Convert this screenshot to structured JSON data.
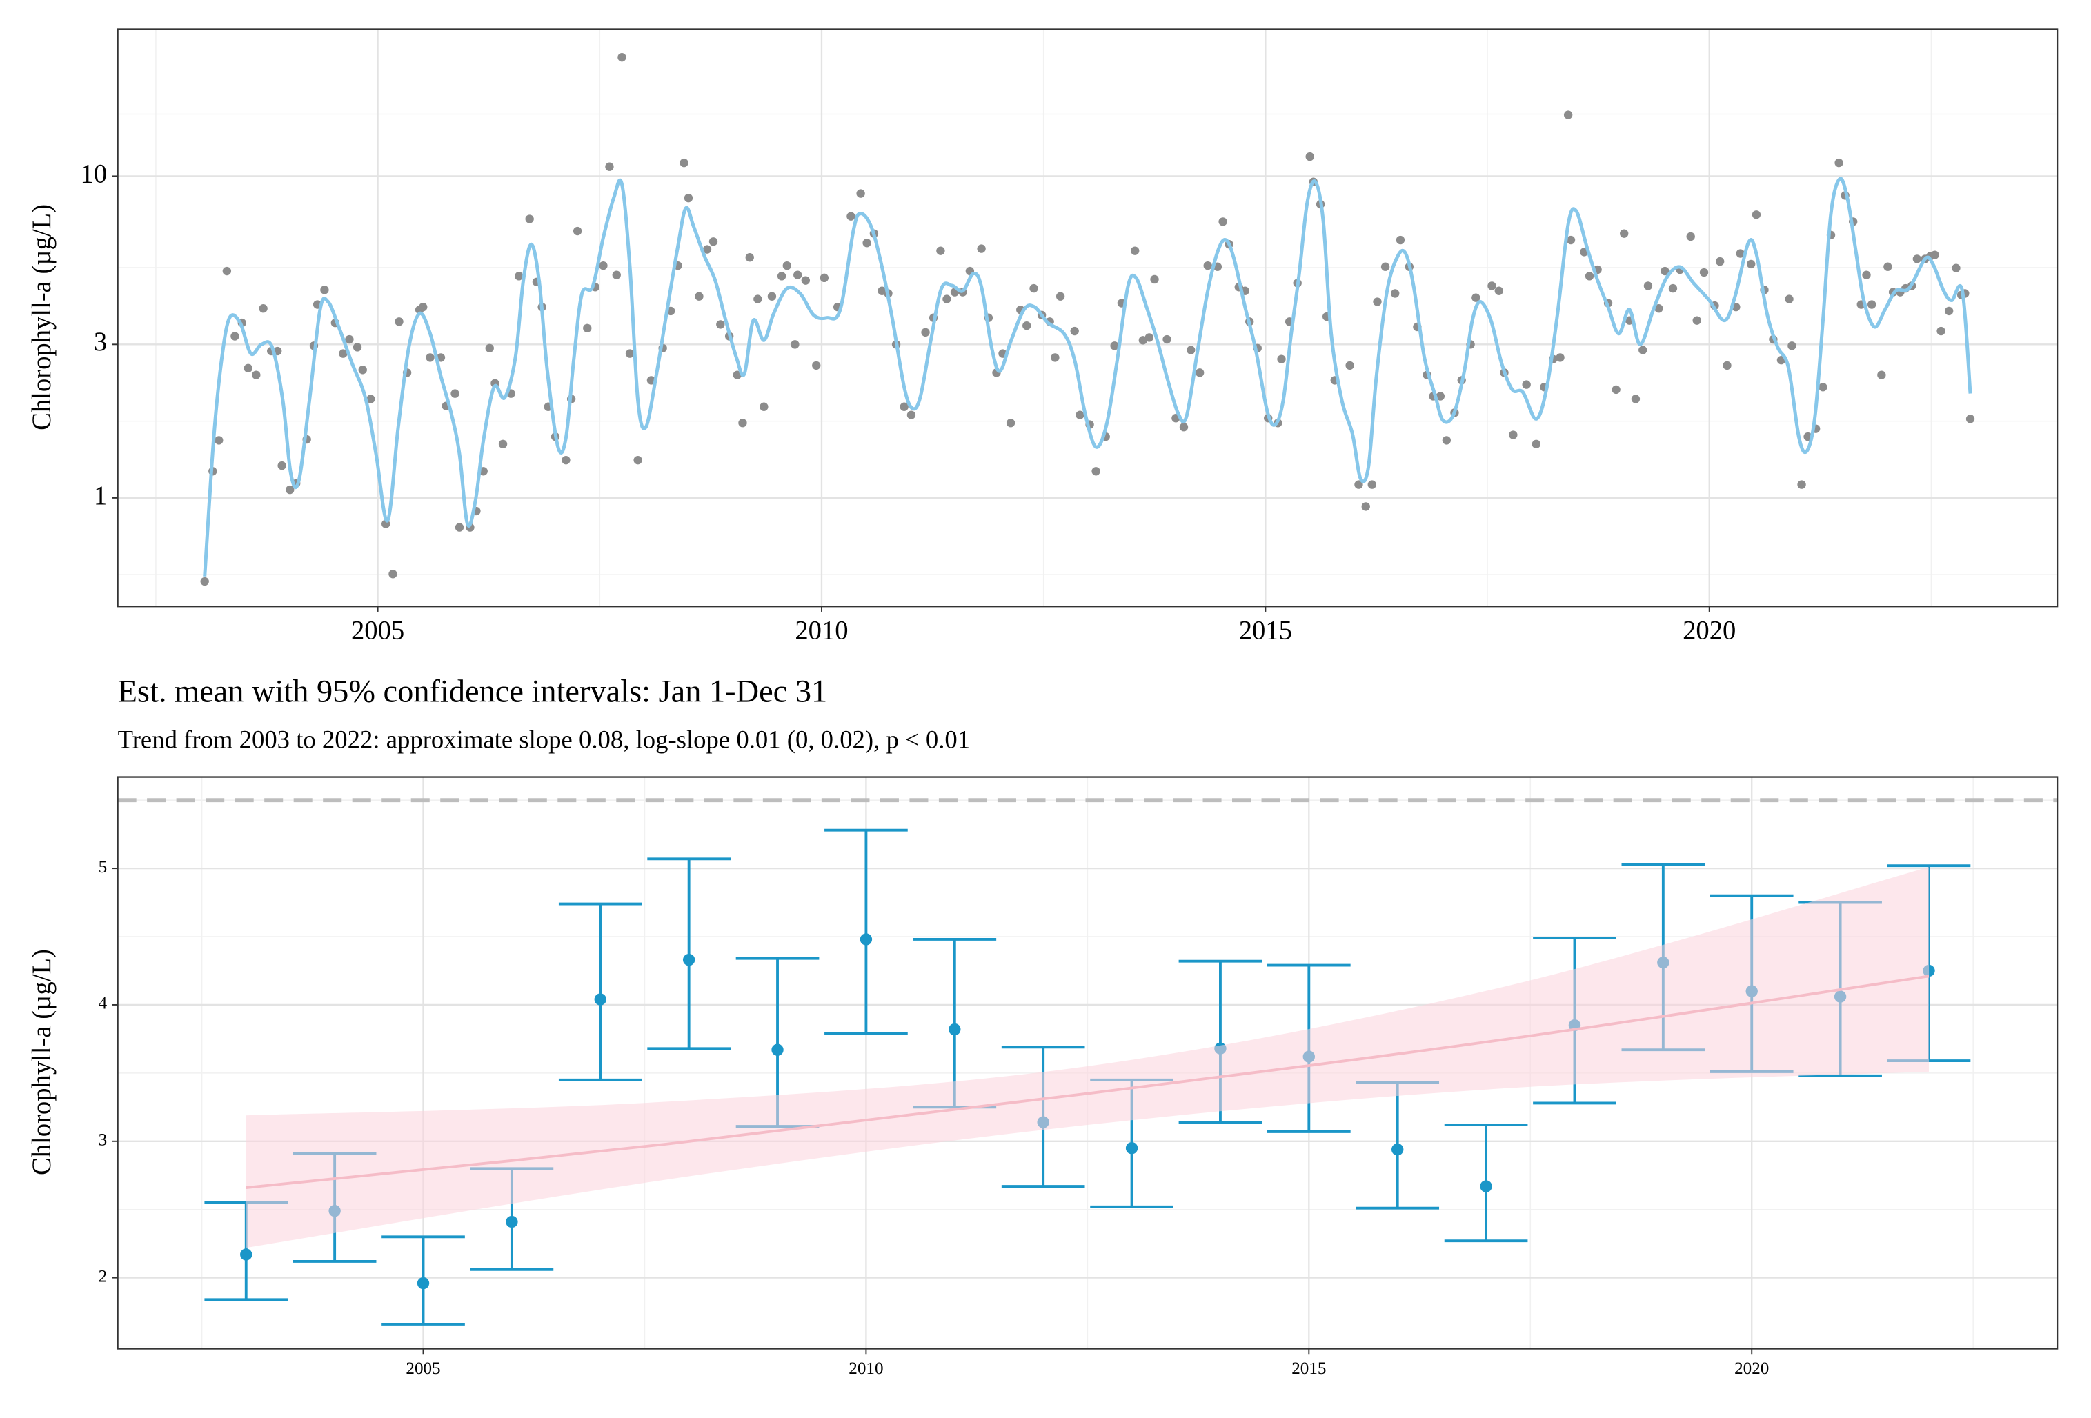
{
  "chart_data": [
    {
      "type": "scatter",
      "y_label": "Chlorophyll-a (µg/L)",
      "log_y": true,
      "grid": true,
      "xlim": [
        2002.07,
        2023.92
      ],
      "ylim": [
        0.46,
        28.6
      ],
      "xticks": [
        2005,
        2010,
        2015,
        2020
      ],
      "yticks": [
        1,
        3,
        10
      ],
      "series": [
        {
          "type": "scatter",
          "color": "#8c8c8c",
          "x": [
            2003.05,
            2003.14,
            2003.21,
            2003.3,
            2003.39,
            2003.47,
            2003.54,
            2003.63,
            2003.71,
            2003.8,
            2003.87,
            2003.92,
            2004.01,
            2004.08,
            2004.2,
            2004.28,
            2004.32,
            2004.4,
            2004.52,
            2004.61,
            2004.68,
            2004.77,
            2004.83,
            2004.92,
            2005.09,
            2005.17,
            2005.24,
            2005.33,
            2005.47,
            2005.51,
            2005.59,
            2005.71,
            2005.77,
            2005.87,
            2005.92,
            2006.04,
            2006.11,
            2006.19,
            2006.26,
            2006.32,
            2006.41,
            2006.5,
            2006.59,
            2006.71,
            2006.79,
            2006.85,
            2006.92,
            2007.0,
            2007.12,
            2007.18,
            2007.25,
            2007.36,
            2007.45,
            2007.54,
            2007.61,
            2007.69,
            2007.75,
            2007.84,
            2007.93,
            2008.08,
            2008.21,
            2008.3,
            2008.38,
            2008.45,
            2008.5,
            2008.62,
            2008.71,
            2008.78,
            2008.86,
            2008.96,
            2009.05,
            2009.11,
            2009.19,
            2009.28,
            2009.35,
            2009.44,
            2009.55,
            2009.61,
            2009.7,
            2009.73,
            2009.82,
            2009.94,
            2010.03,
            2010.18,
            2010.33,
            2010.44,
            2010.51,
            2010.59,
            2010.68,
            2010.75,
            2010.84,
            2010.93,
            2011.01,
            2011.17,
            2011.26,
            2011.34,
            2011.41,
            2011.5,
            2011.59,
            2011.67,
            2011.8,
            2011.88,
            2011.97,
            2012.04,
            2012.13,
            2012.24,
            2012.31,
            2012.39,
            2012.48,
            2012.57,
            2012.63,
            2012.69,
            2012.85,
            2012.91,
            2013.02,
            2013.09,
            2013.2,
            2013.3,
            2013.38,
            2013.53,
            2013.62,
            2013.69,
            2013.75,
            2013.89,
            2013.99,
            2014.08,
            2014.16,
            2014.26,
            2014.35,
            2014.46,
            2014.52,
            2014.59,
            2014.7,
            2014.77,
            2014.82,
            2014.91,
            2015.03,
            2015.14,
            2015.18,
            2015.27,
            2015.36,
            2015.5,
            2015.54,
            2015.62,
            2015.69,
            2015.78,
            2015.95,
            2016.05,
            2016.13,
            2016.2,
            2016.26,
            2016.35,
            2016.46,
            2016.52,
            2016.62,
            2016.71,
            2016.82,
            2016.89,
            2016.97,
            2017.04,
            2017.13,
            2017.21,
            2017.31,
            2017.37,
            2017.55,
            2017.63,
            2017.69,
            2017.79,
            2017.94,
            2018.05,
            2018.14,
            2018.24,
            2018.32,
            2018.41,
            2018.44,
            2018.59,
            2018.65,
            2018.74,
            2018.86,
            2018.95,
            2019.04,
            2019.1,
            2019.17,
            2019.25,
            2019.31,
            2019.43,
            2019.5,
            2019.59,
            2019.67,
            2019.79,
            2019.86,
            2019.94,
            2020.06,
            2020.12,
            2020.2,
            2020.3,
            2020.35,
            2020.47,
            2020.53,
            2020.62,
            2020.72,
            2020.81,
            2020.9,
            2020.93,
            2021.04,
            2021.11,
            2021.2,
            2021.28,
            2021.37,
            2021.46,
            2021.53,
            2021.62,
            2021.71,
            2021.77,
            2021.83,
            2021.94,
            2022.01,
            2022.07,
            2022.15,
            2022.21,
            2022.28,
            2022.34,
            2022.43,
            2022.49,
            2022.54,
            2022.61,
            2022.7,
            2022.78,
            2022.84,
            2022.88,
            2022.94
          ],
          "values": [
            0.55,
            1.21,
            1.51,
            5.07,
            3.18,
            3.5,
            2.53,
            2.41,
            3.88,
            2.86,
            2.86,
            1.26,
            1.06,
            1.11,
            1.52,
            2.97,
            3.99,
            4.43,
            3.5,
            2.81,
            3.11,
            2.94,
            2.5,
            2.03,
            0.83,
            0.58,
            3.53,
            2.45,
            3.84,
            3.92,
            2.73,
            2.73,
            1.93,
            2.11,
            0.81,
            0.81,
            0.91,
            1.21,
            2.92,
            2.27,
            1.47,
            2.11,
            4.89,
            7.36,
            4.69,
            3.92,
            1.92,
            1.55,
            1.31,
            2.03,
            6.75,
            3.37,
            4.52,
            5.27,
            10.7,
            4.93,
            23.4,
            2.81,
            1.31,
            2.32,
            2.92,
            3.81,
            5.27,
            11.0,
            8.55,
            4.23,
            5.92,
            6.26,
            3.46,
            3.18,
            2.41,
            1.71,
            5.59,
            4.15,
            1.92,
            4.23,
            4.89,
            5.27,
            3.0,
            4.93,
            4.74,
            2.58,
            4.83,
            3.92,
            7.5,
            8.83,
            6.2,
            6.63,
            4.4,
            4.32,
            3.0,
            1.92,
            1.81,
            3.27,
            3.63,
            5.86,
            4.15,
            4.36,
            4.36,
            5.07,
            5.95,
            3.63,
            2.45,
            2.81,
            1.71,
            3.84,
            3.43,
            4.48,
            3.7,
            3.53,
            2.73,
            4.23,
            3.3,
            1.81,
            1.69,
            1.21,
            1.55,
            2.97,
            4.03,
            5.86,
            3.09,
            3.15,
            4.78,
            3.11,
            1.77,
            1.66,
            2.88,
            2.45,
            5.27,
            5.23,
            7.22,
            6.14,
            4.52,
            4.4,
            3.53,
            2.92,
            1.77,
            1.71,
            2.7,
            3.53,
            4.65,
            11.5,
            9.6,
            8.18,
            3.66,
            2.32,
            2.58,
            1.1,
            0.94,
            1.1,
            4.07,
            5.23,
            4.32,
            6.33,
            5.23,
            3.4,
            2.41,
            2.07,
            2.07,
            1.51,
            1.84,
            2.32,
            3.0,
            4.19,
            4.56,
            4.4,
            2.45,
            1.57,
            2.25,
            1.47,
            2.21,
            2.7,
            2.73,
            15.5,
            6.33,
            5.81,
            4.89,
            5.12,
            4.03,
            2.17,
            6.63,
            3.56,
            2.03,
            2.88,
            4.56,
            3.88,
            5.07,
            4.48,
            5.12,
            6.49,
            3.56,
            5.02,
            3.96,
            5.43,
            2.58,
            3.92,
            5.75,
            5.33,
            7.59,
            4.43,
            3.11,
            2.68,
            4.15,
            2.97,
            1.1,
            1.55,
            1.64,
            2.21,
            6.56,
            11.0,
            8.71,
            7.22,
            3.99,
            4.93,
            3.99,
            2.41,
            5.23,
            4.36,
            4.36,
            4.48,
            4.56,
            5.53,
            5.53,
            5.64,
            5.69,
            3.3,
            3.81,
            5.18,
            4.27,
            4.32,
            1.76
          ]
        },
        {
          "type": "line",
          "color": "#87c7ea",
          "x": [
            2003.05,
            2003.15,
            2003.24,
            2003.33,
            2003.45,
            2003.57,
            2003.69,
            2003.81,
            2003.93,
            2004.02,
            2004.11,
            2004.23,
            2004.35,
            2004.44,
            2004.56,
            2004.71,
            2004.86,
            2004.98,
            2005.11,
            2005.23,
            2005.35,
            2005.47,
            2005.59,
            2005.71,
            2005.83,
            2005.92,
            2006.01,
            2006.1,
            2006.19,
            2006.31,
            2006.43,
            2006.55,
            2006.64,
            2006.73,
            2006.82,
            2006.91,
            2007.03,
            2007.12,
            2007.21,
            2007.3,
            2007.42,
            2007.54,
            2007.66,
            2007.75,
            2007.84,
            2007.93,
            2008.02,
            2008.14,
            2008.26,
            2008.38,
            2008.47,
            2008.56,
            2008.68,
            2008.8,
            2008.92,
            2009.04,
            2009.13,
            2009.23,
            2009.35,
            2009.46,
            2009.61,
            2009.76,
            2009.91,
            2010.06,
            2010.21,
            2010.36,
            2010.44,
            2010.56,
            2010.68,
            2010.8,
            2010.93,
            2011.02,
            2011.11,
            2011.23,
            2011.35,
            2011.47,
            2011.59,
            2011.71,
            2011.8,
            2011.92,
            2012.01,
            2012.13,
            2012.28,
            2012.4,
            2012.55,
            2012.73,
            2012.85,
            2012.97,
            2013.09,
            2013.21,
            2013.33,
            2013.45,
            2013.54,
            2013.66,
            2013.78,
            2013.9,
            2014.02,
            2014.11,
            2014.23,
            2014.35,
            2014.47,
            2014.56,
            2014.65,
            2014.77,
            2014.89,
            2015.02,
            2015.11,
            2015.2,
            2015.29,
            2015.38,
            2015.47,
            2015.56,
            2015.65,
            2015.74,
            2015.86,
            2015.98,
            2016.07,
            2016.16,
            2016.25,
            2016.37,
            2016.49,
            2016.58,
            2016.67,
            2016.79,
            2016.91,
            2017.0,
            2017.12,
            2017.24,
            2017.33,
            2017.42,
            2017.54,
            2017.66,
            2017.78,
            2017.9,
            2018.05,
            2018.17,
            2018.29,
            2018.41,
            2018.5,
            2018.62,
            2018.74,
            2018.86,
            2018.98,
            2019.1,
            2019.22,
            2019.37,
            2019.52,
            2019.67,
            2019.82,
            2020.0,
            2020.17,
            2020.29,
            2020.44,
            2020.53,
            2020.65,
            2020.77,
            2020.89,
            2021.01,
            2021.1,
            2021.19,
            2021.28,
            2021.37,
            2021.47,
            2021.56,
            2021.65,
            2021.74,
            2021.86,
            2021.98,
            2022.1,
            2022.25,
            2022.43,
            2022.52,
            2022.64,
            2022.73,
            2022.85,
            2022.94
          ],
          "values": [
            0.57,
            1.51,
            2.68,
            3.63,
            3.5,
            2.81,
            3.0,
            2.94,
            2.01,
            1.19,
            1.13,
            2.01,
            3.85,
            4.07,
            3.4,
            2.62,
            2.05,
            1.37,
            0.85,
            1.66,
            2.94,
            3.74,
            3.24,
            2.39,
            1.82,
            1.37,
            0.83,
            0.98,
            1.51,
            2.21,
            2.05,
            2.73,
            4.75,
            6.14,
            4.66,
            2.48,
            1.44,
            1.54,
            2.73,
            4.31,
            4.53,
            6.44,
            8.59,
            9.44,
            5.22,
            2.01,
            1.66,
            2.43,
            3.85,
            6.03,
            7.95,
            6.95,
            5.64,
            4.75,
            3.56,
            2.73,
            2.43,
            3.56,
            3.09,
            3.74,
            4.48,
            4.31,
            3.7,
            3.63,
            3.85,
            6.82,
            7.65,
            6.95,
            5.22,
            3.56,
            2.21,
            1.9,
            2.05,
            3.09,
            4.48,
            4.57,
            4.4,
            4.98,
            4.53,
            2.89,
            2.48,
            3.06,
            3.85,
            3.92,
            3.5,
            3.24,
            2.68,
            1.82,
            1.44,
            1.69,
            2.68,
            4.53,
            4.84,
            3.92,
            3.09,
            2.32,
            1.82,
            1.79,
            2.81,
            4.4,
            5.92,
            6.32,
            5.48,
            3.92,
            2.89,
            1.86,
            1.69,
            2.01,
            3.24,
            4.98,
            8.26,
            9.62,
            7.29,
            3.24,
            2.01,
            1.58,
            1.15,
            1.25,
            2.39,
            4.4,
            5.64,
            5.74,
            4.53,
            2.73,
            2.09,
            1.74,
            1.82,
            2.48,
            3.56,
            4.07,
            3.56,
            2.62,
            2.17,
            2.13,
            1.76,
            2.21,
            3.74,
            7.09,
            7.8,
            6.03,
            4.75,
            3.92,
            3.24,
            3.85,
            3.0,
            3.85,
            4.84,
            5.22,
            4.66,
            4.11,
            3.56,
            4.23,
            6.21,
            5.74,
            3.74,
            2.94,
            2.55,
            1.54,
            1.4,
            1.79,
            3.56,
            7.65,
            9.81,
            8.42,
            5.86,
            4.11,
            3.4,
            3.85,
            4.4,
            4.48,
            5.53,
            5.32,
            4.4,
            4.11,
            4.4,
            2.11
          ]
        }
      ]
    },
    {
      "type": "errorbar",
      "title": "Est. mean with 95% confidence intervals: Jan 1-Dec 31",
      "subtitle": "Trend from 2003 to 2022: approximate slope 0.08, log-slope 0.01 (0, 0.02), p < 0.01",
      "y_label": "Chlorophyll-a (µg/L)",
      "grid": true,
      "xlim": [
        2001.55,
        2023.45
      ],
      "ylim": [
        1.48,
        5.67
      ],
      "xticks": [
        2005,
        2010,
        2015,
        2020
      ],
      "yticks": [
        2,
        3,
        4,
        5
      ],
      "reference_line": 5.5,
      "x": [
        2003,
        2004,
        2005,
        2006,
        2007,
        2008,
        2009,
        2010,
        2011,
        2012,
        2013,
        2014,
        2015,
        2016,
        2017,
        2018,
        2019,
        2020,
        2021,
        2022
      ],
      "series": [
        {
          "color": "#1a96c8",
          "values": [
            2.17,
            2.49,
            1.96,
            2.41,
            4.04,
            4.33,
            3.67,
            4.48,
            3.82,
            3.14,
            2.95,
            3.68,
            3.62,
            2.94,
            2.67,
            3.85,
            4.31,
            4.1,
            4.06,
            4.25
          ],
          "lower": [
            1.84,
            2.12,
            1.66,
            2.06,
            3.45,
            3.68,
            3.11,
            3.79,
            3.25,
            2.67,
            2.52,
            3.14,
            3.07,
            2.51,
            2.27,
            3.28,
            3.67,
            3.51,
            3.48,
            3.59
          ],
          "upper": [
            2.55,
            2.91,
            2.3,
            2.8,
            4.74,
            5.07,
            4.34,
            5.28,
            4.48,
            3.69,
            3.45,
            4.32,
            4.29,
            3.43,
            3.12,
            4.49,
            5.03,
            4.8,
            4.75,
            5.02
          ]
        }
      ],
      "trend": {
        "color": "#f5bcc7",
        "band_color": "#fcd3dc",
        "x": [
          2003,
          2007.75,
          2012.5,
          2017.25,
          2022
        ],
        "values": [
          2.66,
          2.98,
          3.35,
          3.75,
          4.21
        ],
        "lower": [
          2.22,
          2.72,
          3.12,
          3.39,
          3.51
        ],
        "upper": [
          3.19,
          3.29,
          3.55,
          4.14,
          5.01
        ]
      }
    }
  ]
}
